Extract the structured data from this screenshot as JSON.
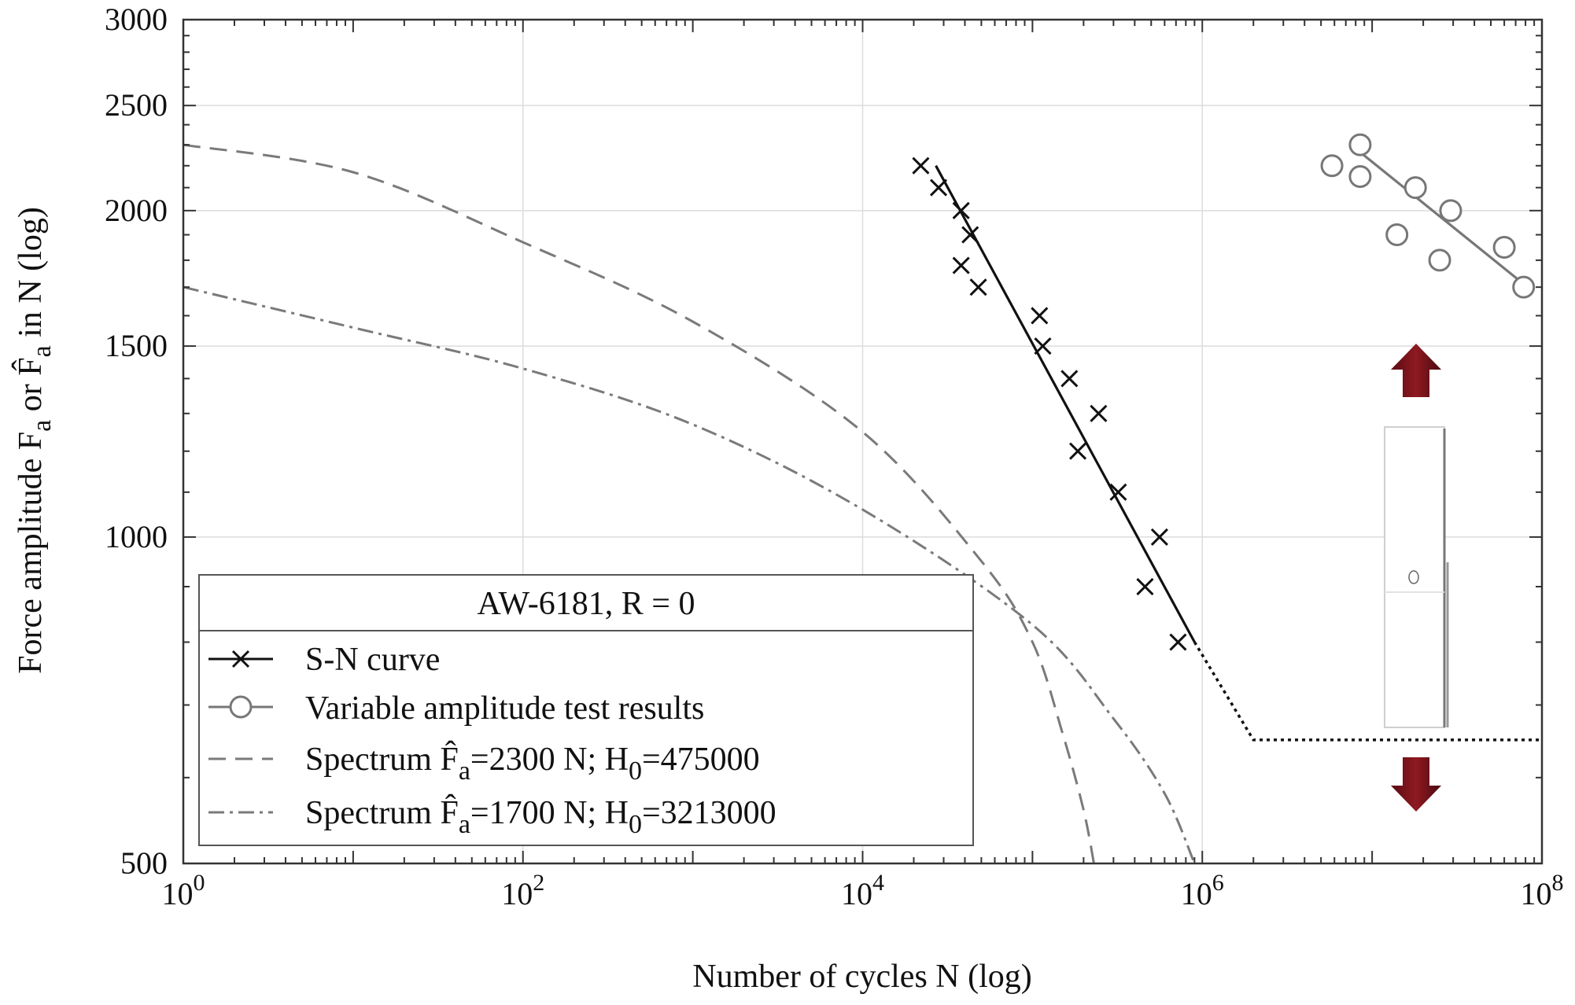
{
  "chart_data": {
    "type": "scatter",
    "xscale": "log",
    "yscale": "log",
    "xlim": [
      1,
      100000000
    ],
    "ylim": [
      500,
      3000
    ],
    "xlabel": "Number of cycles N (log)",
    "ylabel": {
      "pre": "Force amplitude F",
      "sub": "a",
      "mid": " or F̂",
      "sub2": "a",
      "post": " in N (log)"
    },
    "x_ticks": [
      {
        "value": 1,
        "base": "10",
        "exp": "0"
      },
      {
        "value": 100,
        "base": "10",
        "exp": "2"
      },
      {
        "value": 10000,
        "base": "10",
        "exp": "4"
      },
      {
        "value": 1000000,
        "base": "10",
        "exp": "6"
      },
      {
        "value": 100000000,
        "base": "10",
        "exp": "8"
      }
    ],
    "y_ticks": [
      {
        "value": 500,
        "label": "500"
      },
      {
        "value": 1000,
        "label": "1000"
      },
      {
        "value": 1500,
        "label": "1500"
      },
      {
        "value": 2000,
        "label": "2000"
      },
      {
        "value": 2500,
        "label": "2500"
      },
      {
        "value": 3000,
        "label": "3000"
      }
    ],
    "grid": true,
    "legend": {
      "title": "AW-6181, R = 0",
      "position": "bottom-left",
      "entries": [
        {
          "pre": "S-N curve"
        },
        {
          "pre": "Variable amplitude test results"
        },
        {
          "pre": "Spectrum F̂",
          "sub": "a",
          "mid": "=2300 N; H",
          "sub2": "0",
          "post": "=475000"
        },
        {
          "pre": "Spectrum F̂",
          "sub": "a",
          "mid": "=1700 N; H",
          "sub2": "0",
          "post": "=3213000"
        }
      ]
    },
    "series": [
      {
        "name": "S-N curve",
        "kind": "markers-x",
        "color": "#111111",
        "points": [
          [
            22000,
            2200
          ],
          [
            28000,
            2100
          ],
          [
            38000,
            2000
          ],
          [
            43000,
            1900
          ],
          [
            38000,
            1780
          ],
          [
            48000,
            1700
          ],
          [
            110000,
            1600
          ],
          [
            115000,
            1500
          ],
          [
            165000,
            1400
          ],
          [
            245000,
            1300
          ],
          [
            185000,
            1200
          ],
          [
            320000,
            1100
          ],
          [
            560000,
            1000
          ],
          [
            460000,
            900
          ],
          [
            720000,
            800
          ]
        ]
      },
      {
        "name": "S-N curve",
        "kind": "line-solid",
        "color": "#111111",
        "points": [
          [
            27000,
            2200
          ],
          [
            900000,
            800
          ]
        ]
      },
      {
        "name": "S-N curve",
        "kind": "line-dotted",
        "color": "#111111",
        "points": [
          [
            900000,
            800
          ],
          [
            2000000,
            650
          ],
          [
            100000000,
            650
          ]
        ]
      },
      {
        "name": "Variable amplitude test results",
        "kind": "markers-circle",
        "color": "#777777",
        "points": [
          [
            5800000,
            2200
          ],
          [
            8500000,
            2300
          ],
          [
            8500000,
            2150
          ],
          [
            18000000,
            2100
          ],
          [
            14000000,
            1900
          ],
          [
            29000000,
            2000
          ],
          [
            25000000,
            1800
          ],
          [
            60000000,
            1850
          ],
          [
            78000000,
            1700
          ]
        ]
      },
      {
        "name": "Variable amplitude test results",
        "kind": "line-solid",
        "color": "#777777",
        "points": [
          [
            7500000,
            2300
          ],
          [
            75000000,
            1720
          ]
        ]
      },
      {
        "name": "Spectrum F̂a=2300 N; H0=475000",
        "kind": "curve-dashed",
        "color": "#7a7a7a",
        "points": [
          [
            1,
            2300
          ],
          [
            10,
            2170
          ],
          [
            100,
            1870
          ],
          [
            1000,
            1580
          ],
          [
            10000,
            1250
          ],
          [
            50000,
            950
          ],
          [
            100000,
            800
          ],
          [
            150000,
            660
          ],
          [
            200000,
            560
          ],
          [
            230000,
            500
          ]
        ]
      },
      {
        "name": "Spectrum F̂a=1700 N; H0=3213000",
        "kind": "curve-dashdot",
        "color": "#7a7a7a",
        "points": [
          [
            1,
            1700
          ],
          [
            10,
            1560
          ],
          [
            100,
            1430
          ],
          [
            1000,
            1270
          ],
          [
            10000,
            1060
          ],
          [
            100000,
            830
          ],
          [
            300000,
            680
          ],
          [
            600000,
            580
          ],
          [
            900000,
            500
          ]
        ]
      }
    ]
  }
}
